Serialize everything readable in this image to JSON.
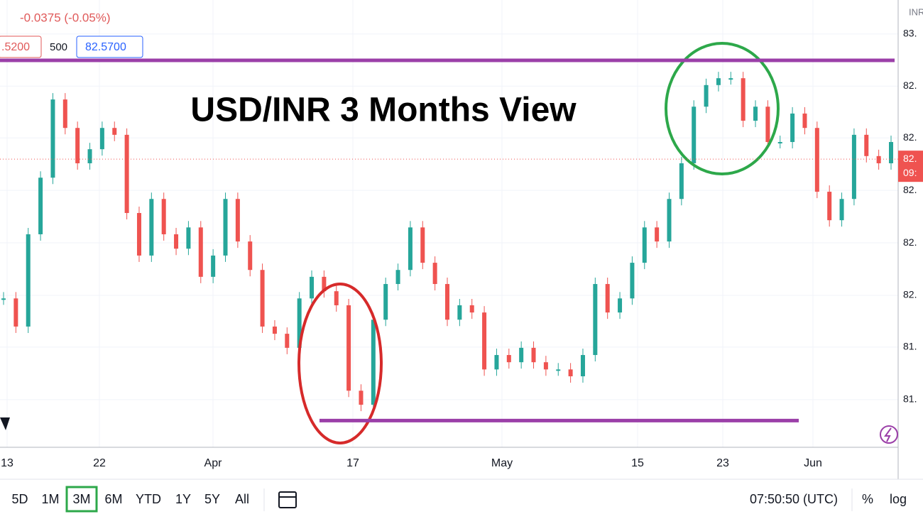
{
  "header": {
    "change": "-0.0375 (-0.05%)",
    "low_box": ".5200",
    "mid_box": "500",
    "high_box": "82.5700",
    "symbol": "INR"
  },
  "title": "USD/INR 3 Months View",
  "chart": {
    "type": "candlestick",
    "ylim": [
      81.442,
      82.746
    ],
    "yticks": [
      {
        "value": 82.647,
        "label": "83."
      },
      {
        "value": 82.495,
        "label": "82."
      },
      {
        "value": 82.344,
        "label": "82."
      },
      {
        "value": 82.191,
        "label": "82."
      },
      {
        "value": 82.038,
        "label": "82."
      },
      {
        "value": 81.885,
        "label": "82."
      },
      {
        "value": 81.734,
        "label": "81."
      },
      {
        "value": 81.581,
        "label": "81."
      }
    ],
    "resistance": 82.57,
    "support": 81.52,
    "last_price": 82.282,
    "last_price_labels": [
      "82.",
      "09:"
    ],
    "x_labels": [
      "13",
      "22",
      "Apr",
      "17",
      "May",
      "15",
      "23",
      "Jun"
    ],
    "prices": [
      81.876,
      81.794,
      82.063,
      82.228,
      82.456,
      82.373,
      82.27,
      82.311,
      82.373,
      82.353,
      82.125,
      82.001,
      82.166,
      82.063,
      82.021,
      82.083,
      81.939,
      82.001,
      82.166,
      82.042,
      81.959,
      81.794,
      81.773,
      81.732,
      81.876,
      81.939,
      81.897,
      81.856,
      81.607,
      81.566,
      81.814,
      81.918,
      81.959,
      82.083,
      81.98,
      81.918,
      81.814,
      81.856,
      81.835,
      81.669,
      81.711,
      81.69,
      81.732,
      81.69,
      81.669,
      81.669,
      81.649,
      81.711,
      81.918,
      81.835,
      81.876,
      81.98,
      82.083,
      82.042,
      82.166,
      82.27,
      82.435,
      82.498,
      82.518,
      82.518,
      82.394,
      82.435,
      82.332,
      82.332,
      82.415,
      82.373,
      82.187,
      82.104,
      82.166,
      82.353,
      82.291,
      82.27,
      82.332
    ],
    "up_color": "#26a69a",
    "down_color": "#ef5350",
    "level_color": "#9b3fa8"
  },
  "toolbar": {
    "periods": [
      "5D",
      "1M",
      "3M",
      "6M",
      "YTD",
      "1Y",
      "5Y",
      "All"
    ],
    "active": "3M",
    "clock": "07:50:50 (UTC)",
    "percent": "%",
    "log": "log"
  }
}
